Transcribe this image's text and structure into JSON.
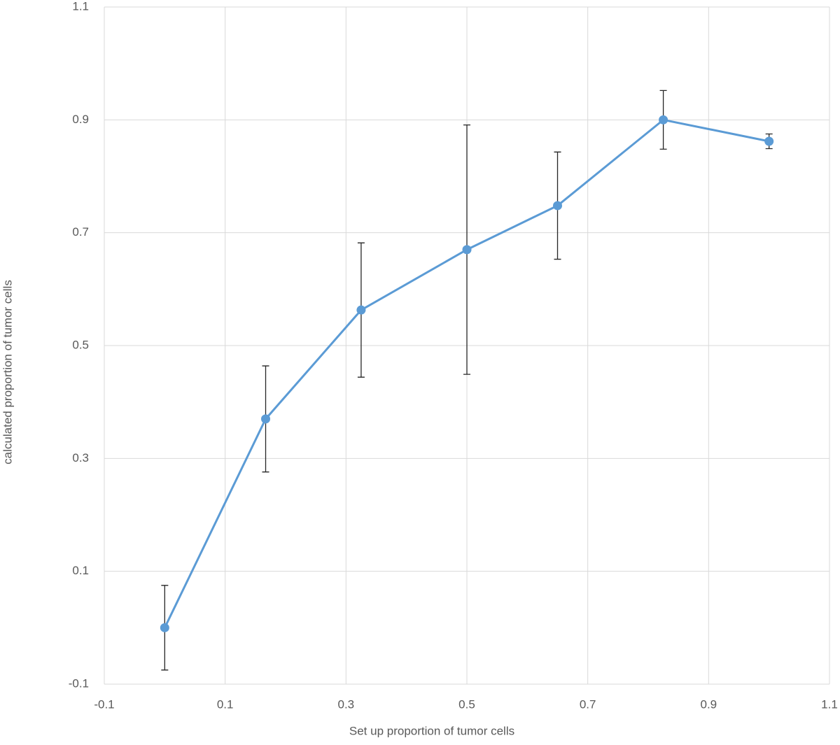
{
  "chart_data": {
    "type": "line",
    "xlabel": "Set up proportion of tumor cells",
    "ylabel": "calculated proportion of tumor cells",
    "x": [
      0,
      0.167,
      0.325,
      0.5,
      0.65,
      0.825,
      1.0
    ],
    "series": [
      {
        "color": "#5b9bd5",
        "values": [
          0.0,
          0.37,
          0.563,
          0.67,
          0.748,
          0.9,
          0.862
        ],
        "errors": [
          0.075,
          0.094,
          0.119,
          0.221,
          0.095,
          0.052,
          0.013
        ]
      }
    ],
    "xlim": [
      -0.1,
      1.1
    ],
    "xticks": [
      -0.1,
      0.1,
      0.3,
      0.5,
      0.7,
      0.9,
      1.1
    ],
    "ylim": [
      -0.1,
      1.1
    ],
    "yticks": [
      -0.1,
      0.1,
      0.3,
      0.5,
      0.7,
      0.9,
      1.1
    ],
    "grid": true
  }
}
